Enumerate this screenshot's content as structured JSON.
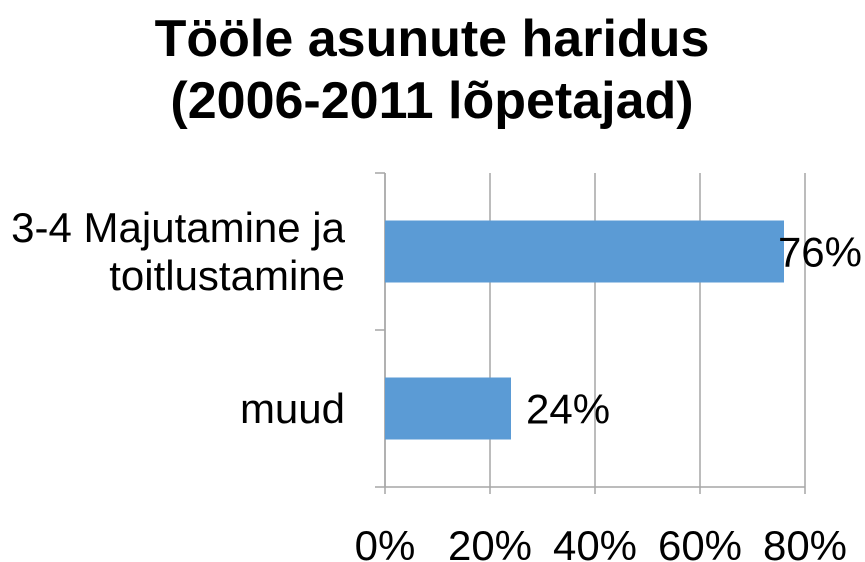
{
  "chart_data": {
    "type": "barh",
    "title": "Tööle asunute haridus (2006-2011 lõpetajad)",
    "categories": [
      "3-4 Majutamine ja toitlustamine",
      "muud"
    ],
    "values": [
      76,
      24
    ],
    "value_labels": [
      "76%",
      "24%"
    ],
    "color": "#5b9bd5",
    "xlim": [
      0,
      80
    ],
    "xticks": [
      {
        "value": 0,
        "label": "0%"
      },
      {
        "value": 20,
        "label": "20%"
      },
      {
        "value": 40,
        "label": "40%"
      },
      {
        "value": 60,
        "label": "60%"
      },
      {
        "value": 80,
        "label": "80%"
      }
    ],
    "grid": true
  }
}
